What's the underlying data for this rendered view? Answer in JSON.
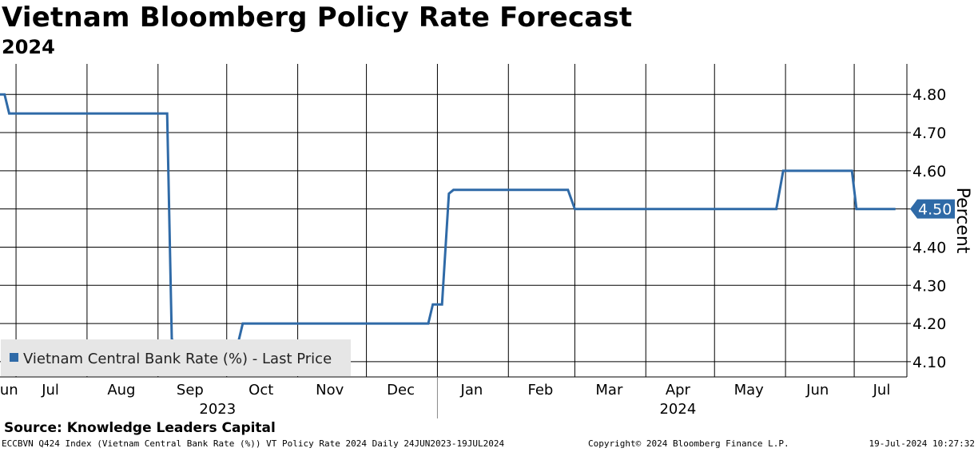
{
  "header": {
    "title": "Vietnam Bloomberg Policy Rate Forecast",
    "subtitle": "2024"
  },
  "source": "Source: Knowledge Leaders Capital",
  "footer": {
    "ticker": "ECCBVN Q424 Index (Vietnam Central Bank Rate (%)) VT Policy Rate 2024  Daily 24JUN2023-19JUL2024",
    "copyright": "Copyright© 2024 Bloomberg Finance L.P.",
    "timestamp": "19-Jul-2024 10:27:32"
  },
  "colors": {
    "series": "#2f6aa7",
    "grid": "#000000",
    "legend_bg": "#e6e6e6"
  },
  "chart_data": {
    "type": "line",
    "title": "Vietnam Bloomberg Policy Rate Forecast",
    "subtitle": "2024",
    "ylabel": "Percent",
    "y_axis_side": "right",
    "ylim": [
      4.06,
      4.88
    ],
    "xlim": [
      "2023-06-24",
      "2024-07-24"
    ],
    "y_ticks": [
      4.8,
      4.7,
      4.6,
      4.5,
      4.4,
      4.3,
      4.2,
      4.1
    ],
    "y_tick_labels": [
      "4.80",
      "4.70",
      "4.60",
      "4.50",
      "4.40",
      "4.30",
      "4.20",
      "4.10"
    ],
    "x_month_labels": [
      {
        "label": "Jun",
        "date": "2023-06-27"
      },
      {
        "label": "Jul",
        "date": "2023-07-16"
      },
      {
        "label": "Aug",
        "date": "2023-08-16"
      },
      {
        "label": "Sep",
        "date": "2023-09-15"
      },
      {
        "label": "Oct",
        "date": "2023-10-16"
      },
      {
        "label": "Nov",
        "date": "2023-11-15"
      },
      {
        "label": "Dec",
        "date": "2023-12-16"
      },
      {
        "label": "Jan",
        "date": "2024-01-16"
      },
      {
        "label": "Feb",
        "date": "2024-02-15"
      },
      {
        "label": "Mar",
        "date": "2024-03-16"
      },
      {
        "label": "Apr",
        "date": "2024-04-15"
      },
      {
        "label": "May",
        "date": "2024-05-16"
      },
      {
        "label": "Jun",
        "date": "2024-06-15"
      },
      {
        "label": "Jul",
        "date": "2024-07-13"
      }
    ],
    "x_year_labels": [
      {
        "label": "2023",
        "date": "2023-09-27"
      },
      {
        "label": "2024",
        "date": "2024-04-15"
      }
    ],
    "year_divider_date": "2024-01-01",
    "grid": true,
    "legend_position": "bottom-left",
    "last_value_label": "4.50",
    "series": [
      {
        "name": "Vietnam Central Bank Rate (%) - Last Price",
        "color": "#2f6aa7",
        "points": [
          [
            "2023-06-24",
            4.8
          ],
          [
            "2023-06-26",
            4.8
          ],
          [
            "2023-06-28",
            4.75
          ],
          [
            "2023-09-05",
            4.75
          ],
          [
            "2023-09-07",
            4.16
          ],
          [
            "2023-09-08",
            4.15
          ],
          [
            "2023-10-06",
            4.15
          ],
          [
            "2023-10-08",
            4.2
          ],
          [
            "2023-12-28",
            4.2
          ],
          [
            "2023-12-30",
            4.25
          ],
          [
            "2024-01-03",
            4.25
          ],
          [
            "2024-01-06",
            4.54
          ],
          [
            "2024-01-08",
            4.55
          ],
          [
            "2024-02-27",
            4.55
          ],
          [
            "2024-03-01",
            4.5
          ],
          [
            "2024-05-28",
            4.5
          ],
          [
            "2024-05-31",
            4.6
          ],
          [
            "2024-06-30",
            4.6
          ],
          [
            "2024-07-02",
            4.5
          ],
          [
            "2024-07-19",
            4.5
          ]
        ]
      }
    ]
  }
}
